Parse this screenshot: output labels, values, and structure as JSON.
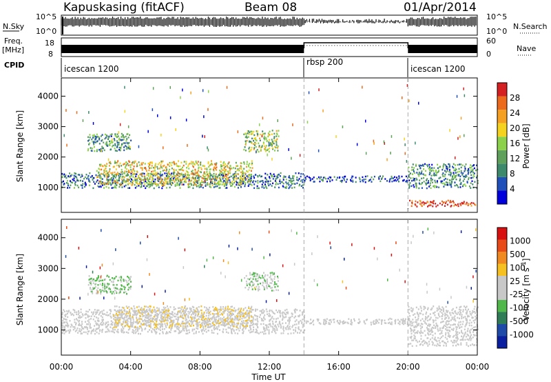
{
  "header": {
    "station": "Kapuskasing (fitACF)",
    "beam": "Beam 08",
    "date": "01/Apr/2014"
  },
  "strips": {
    "nsky_label": "N.Sky",
    "freq_label_1": "Freq.",
    "freq_label_2": "[MHz]",
    "cpid_label": "CPID",
    "nsearch_label": "N.Search",
    "nave_label": "Nave",
    "noise_ticks": [
      "10^5",
      "10^0"
    ],
    "freq_ticks": [
      "18",
      "8"
    ],
    "nave_ticks": [
      "60",
      "0"
    ],
    "cpid_segments": [
      {
        "label": "icescan 1200",
        "start_hr": 0,
        "end_hr": 14
      },
      {
        "label": "rbsp 200",
        "start_hr": 14,
        "end_hr": 20
      },
      {
        "label": "icescan 1200",
        "start_hr": 20,
        "end_hr": 24
      }
    ]
  },
  "panels": {
    "power": {
      "ylabel": "Slant Range [km]",
      "cbar_label": "Power [dB]",
      "cbar_ticks": [
        "28",
        "24",
        "20",
        "16",
        "12",
        "8",
        "4"
      ]
    },
    "velocity": {
      "ylabel": "Slant Range [km]",
      "cbar_label": "Velocity [m s",
      "cbar_label_sup": "-1",
      "cbar_label_end": "]",
      "cbar_ticks": [
        "1000",
        "500",
        "100",
        "25",
        "-25",
        "-100",
        "-500",
        "-1000"
      ]
    }
  },
  "axes": {
    "xlabel": "Time UT",
    "xticks": [
      "00:00",
      "04:00",
      "08:00",
      "12:00",
      "16:00",
      "20:00",
      "00:00"
    ],
    "yticks": [
      "4000",
      "3000",
      "2000",
      "1000"
    ]
  },
  "colors": {
    "power_scale": [
      "#0000dd",
      "#1f4fb8",
      "#3c8a6b",
      "#5fa05a",
      "#8bd24a",
      "#f5d21e",
      "#f5a020",
      "#ec6a1c",
      "#d42020"
    ],
    "velocity_scale": [
      "#0a1ea0",
      "#1e4aa8",
      "#2f7d56",
      "#50b84a",
      "#c8c8c8",
      "#c8c8c8",
      "#f5c020",
      "#f08a20",
      "#e84a18",
      "#d81010"
    ]
  },
  "chart_data": [
    {
      "type": "heatmap",
      "title": "Kapuskasing (fitACF)",
      "xlabel": "Time UT",
      "ylabel": "Slant Range [km]",
      "x_range_hours": [
        0,
        24
      ],
      "y_range_km": [
        180,
        4600
      ],
      "colorbar": "Power [dB]",
      "colorbar_range": [
        0,
        30
      ],
      "regions": [
        {
          "t_start": 0,
          "t_end": 14,
          "range_min": 1000,
          "range_max": 1500,
          "value": 8
        },
        {
          "t_start": 2,
          "t_end": 11,
          "range_min": 1100,
          "range_max": 1900,
          "value": 18
        },
        {
          "t_start": 1.5,
          "t_end": 4,
          "range_min": 2200,
          "range_max": 2800,
          "value": 10
        },
        {
          "t_start": 10.5,
          "t_end": 12.5,
          "range_min": 2200,
          "range_max": 2900,
          "value": 14
        },
        {
          "t_start": 14,
          "t_end": 20,
          "range_min": 1200,
          "range_max": 1400,
          "value": 6
        },
        {
          "t_start": 20,
          "t_end": 24,
          "range_min": 1000,
          "range_max": 1800,
          "value": 9
        },
        {
          "t_start": 20,
          "t_end": 24,
          "range_min": 400,
          "range_max": 600,
          "value": 27
        }
      ]
    },
    {
      "type": "heatmap",
      "xlabel": "Time UT",
      "ylabel": "Slant Range [km]",
      "x_range_hours": [
        0,
        24
      ],
      "y_range_km": [
        180,
        4600
      ],
      "colorbar": "Velocity [m s-1]",
      "colorbar_range": [
        -1000,
        1000
      ],
      "regions": [
        {
          "t_start": 0,
          "t_end": 14,
          "range_min": 900,
          "range_max": 1700,
          "value": 0
        },
        {
          "t_start": 3,
          "t_end": 11,
          "range_min": 1100,
          "range_max": 1800,
          "value": 150
        },
        {
          "t_start": 1.5,
          "t_end": 4,
          "range_min": 2200,
          "range_max": 2800,
          "value": -200
        },
        {
          "t_start": 10.5,
          "t_end": 12.5,
          "range_min": 2300,
          "range_max": 2900,
          "value": -150
        },
        {
          "t_start": 14,
          "t_end": 20,
          "range_min": 1200,
          "range_max": 1400,
          "value": 0
        },
        {
          "t_start": 20,
          "t_end": 24,
          "range_min": 500,
          "range_max": 1800,
          "value": 0
        }
      ]
    }
  ]
}
